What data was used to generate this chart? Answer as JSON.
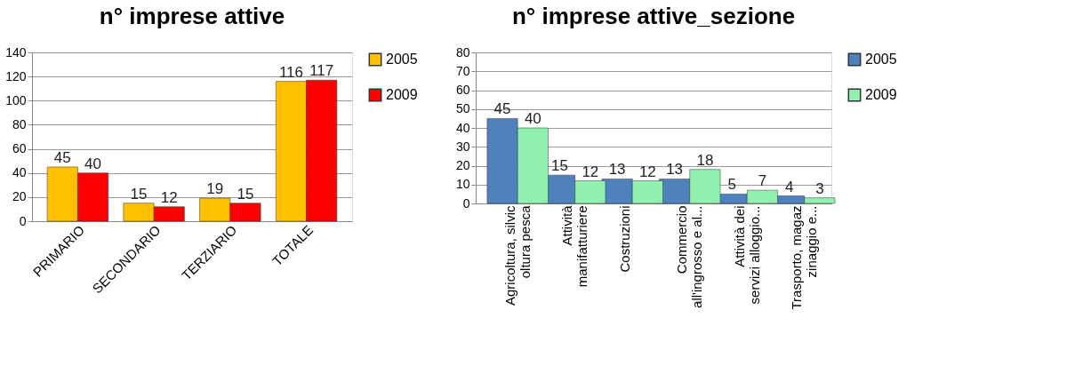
{
  "chart_data": [
    {
      "type": "bar",
      "title": "n° imprese attive",
      "categories": [
        "PRIMARIO",
        "SECONDARIO",
        "TERZIARIO",
        "TOTALE"
      ],
      "series": [
        {
          "name": "2005",
          "color": "#ffc000",
          "values": [
            45,
            15,
            19,
            116
          ]
        },
        {
          "name": "2009",
          "color": "#ff0000",
          "values": [
            40,
            12,
            15,
            117
          ]
        }
      ],
      "ylim": [
        0,
        140
      ],
      "yticks": [
        0,
        20,
        40,
        60,
        80,
        100,
        120,
        140
      ],
      "grid": "y",
      "legend": "right",
      "data_labels": true
    },
    {
      "type": "bar",
      "title": "n° imprese attive_sezione",
      "categories": [
        "Agricoltura, silvic\noltura pesca",
        "Attività\nmanifatturiere",
        "Costruzioni",
        "Commercio\nall'ingrosso e al...",
        "Attività dei\nservizi alloggio...",
        "Trasporto, magaz\nzinaggio e..."
      ],
      "series": [
        {
          "name": "2005",
          "color": "#4f81bd",
          "values": [
            45,
            15,
            13,
            13,
            5,
            4
          ]
        },
        {
          "name": "2009",
          "color": "#90f0b0",
          "values": [
            40,
            12,
            12,
            18,
            7,
            3
          ]
        }
      ],
      "ylim": [
        0,
        80
      ],
      "yticks": [
        0,
        10,
        20,
        30,
        40,
        50,
        60,
        70,
        80
      ],
      "grid": "y",
      "legend": "right",
      "data_labels": true
    }
  ]
}
